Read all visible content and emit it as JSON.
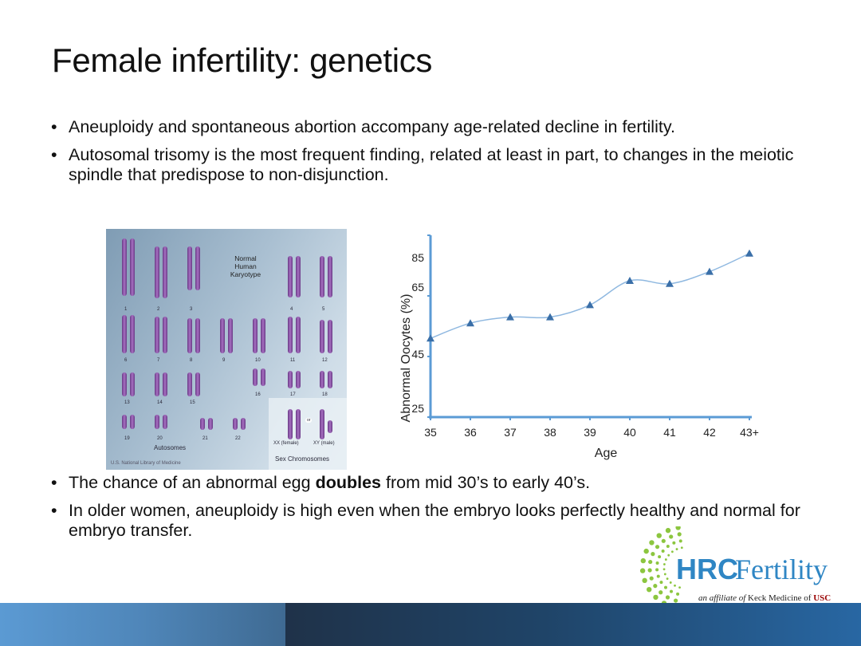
{
  "slide": {
    "title": "Female infertility: genetics",
    "bullets_top": [
      {
        "text": "Aneuploidy and spontaneous abortion accompany age-related decline in fertility."
      },
      {
        "text": "Autosomal trisomy is the most frequent finding, related at least in part, to changes in the meiotic spindle that predispose to non-disjunction."
      }
    ],
    "bullets_bottom": [
      {
        "pre": "The chance of an abnormal egg ",
        "bold": "doubles",
        "post": " from mid 30’s to early 40’s."
      },
      {
        "text": "In older women, aneuploidy is high even when the embryo looks perfectly healthy and normal for embryo transfer."
      }
    ],
    "bullet_char": "•"
  },
  "karyotype": {
    "title_lines": [
      "Normal",
      "Human",
      "Karyotype"
    ],
    "numbers": [
      "1",
      "2",
      "3",
      "4",
      "5",
      "6",
      "7",
      "8",
      "9",
      "10",
      "11",
      "12",
      "13",
      "14",
      "15",
      "16",
      "17",
      "18",
      "19",
      "20",
      "21",
      "22"
    ],
    "autosomes_label": "Autosomes",
    "sex_label": "Sex Chromosomes",
    "xx_label": "XX (female)",
    "xy_label": "XY (male)",
    "or_label": "or",
    "credit": "U.S. National Library of Medicine"
  },
  "chart_data": {
    "type": "line",
    "title": "",
    "xlabel": "Age",
    "ylabel": "Abnormal Oocytes (%)",
    "categories": [
      "35",
      "36",
      "37",
      "38",
      "39",
      "40",
      "41",
      "42",
      "43+"
    ],
    "series": [
      {
        "name": "Abnormal Oocytes",
        "values": [
          51,
          56,
          58,
          58,
          62,
          70,
          69,
          73,
          79
        ],
        "marker": "triangle"
      }
    ],
    "ylim": [
      25,
      85
    ],
    "yticks": [
      25,
      45,
      65,
      85
    ],
    "grid": false,
    "legend": "none",
    "colors": {
      "axis": "#5b9bd5",
      "line": "#8fb8e0",
      "marker": "#3a6fa8"
    }
  },
  "logo": {
    "brand_bold": "HRC",
    "brand_light": "Fertility",
    "tagline_pre": "an affiliate of",
    "tagline_mid": " Keck Medicine of ",
    "tagline_usc": "USC",
    "colors": {
      "blue": "#2f86c4",
      "green": "#8cc63f",
      "usc": "#990000"
    }
  }
}
